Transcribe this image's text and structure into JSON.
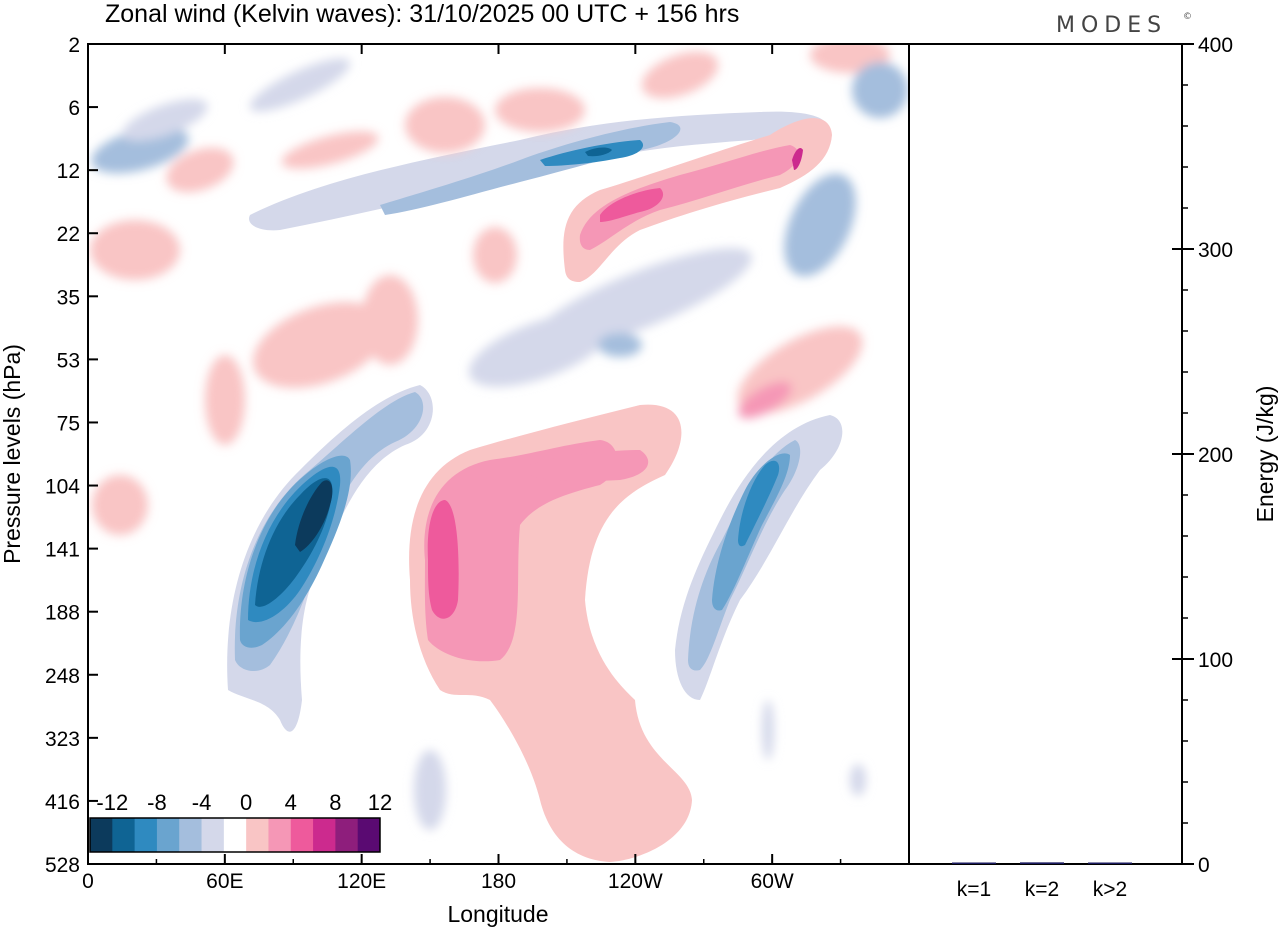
{
  "brand": "MODES",
  "brand_mark": "©",
  "chart_data": [
    {
      "type": "heatmap",
      "title": "Zonal wind (Kelvin waves):  31/10/2025  00 UTC  + 156 hrs",
      "xlabel": "Longitude",
      "ylabel": "Pressure levels (hPa)",
      "x_ticks": [
        "0",
        "60E",
        "120E",
        "180",
        "120W",
        "60W"
      ],
      "x_tick_values_deg": [
        0,
        60,
        120,
        180,
        240,
        300
      ],
      "xlim_deg": [
        0,
        360
      ],
      "y_ticks": [
        "2",
        "6",
        "12",
        "22",
        "35",
        "53",
        "75",
        "104",
        "141",
        "188",
        "248",
        "323",
        "416",
        "528"
      ],
      "y_order": "top-to-bottom",
      "colorbar": {
        "labels": [
          "-12",
          "-8",
          "-4",
          "0",
          "4",
          "8",
          "12"
        ],
        "levels": [
          -14,
          -12,
          -10,
          -8,
          -6,
          -4,
          -2,
          2,
          4,
          6,
          8,
          10,
          12,
          14
        ],
        "colors": [
          "#0c3a5c",
          "#0f6494",
          "#2f8ac0",
          "#6aa4cf",
          "#a4bedd",
          "#d4d8ea",
          "#ffffff",
          "#f9c5c5",
          "#f597b6",
          "#ee5a9c",
          "#cc2a8e",
          "#8e1e7c",
          "#5a0a72"
        ]
      },
      "features": [
        {
          "sign": "negative",
          "max_level": -12,
          "lon_deg": [
            55,
            110
          ],
          "levels_hPa": [
            90,
            220
          ]
        },
        {
          "sign": "positive",
          "max_level": 8,
          "lon_deg": [
            143,
            160
          ],
          "levels_hPa": [
            110,
            200
          ]
        },
        {
          "sign": "positive",
          "max_level": 6,
          "lon_deg": [
            140,
            190
          ],
          "levels_hPa": [
            90,
            230
          ]
        },
        {
          "sign": "positive",
          "max_level": 2,
          "lon_deg": [
            140,
            265
          ],
          "levels_hPa": [
            85,
            528
          ]
        },
        {
          "sign": "negative",
          "max_level": -8,
          "lon_deg": [
            265,
            310
          ],
          "levels_hPa": [
            85,
            240
          ]
        },
        {
          "sign": "positive",
          "max_level": 8,
          "lon_deg": [
            210,
            320
          ],
          "levels_hPa": [
            8,
            25
          ]
        },
        {
          "sign": "negative",
          "max_level": -10,
          "lon_deg": [
            170,
            320
          ],
          "levels_hPa": [
            8,
            20
          ]
        }
      ]
    },
    {
      "type": "bar",
      "ylabel": "Energy (J/kg)",
      "categories": [
        "k=1",
        "k=2",
        "k>2"
      ],
      "values": [
        0.5,
        0.8,
        0.4
      ],
      "ylim": [
        0,
        400
      ],
      "y_ticks": [
        "0",
        "100",
        "200",
        "300",
        "400"
      ],
      "bar_color": "#1a1a5e"
    }
  ]
}
